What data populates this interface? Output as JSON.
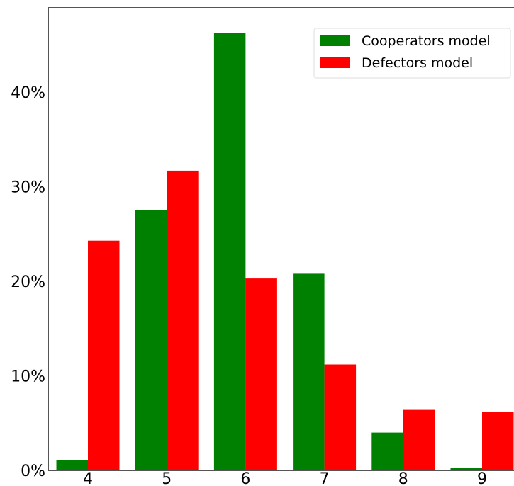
{
  "chart_data": {
    "type": "bar",
    "categories": [
      "4",
      "5",
      "6",
      "7",
      "8",
      "9"
    ],
    "series": [
      {
        "name": "Cooperators model",
        "color": "#008000",
        "values": [
          1.1,
          27.5,
          46.3,
          20.8,
          4.0,
          0.3
        ]
      },
      {
        "name": "Defectors model",
        "color": "#ff0000",
        "values": [
          24.3,
          31.7,
          20.3,
          11.2,
          6.4,
          6.2
        ]
      }
    ],
    "ylim": [
      0,
      49
    ],
    "yticks": [
      0,
      10,
      20,
      30,
      40
    ],
    "ytick_labels": [
      "0%",
      "10%",
      "20%",
      "30%",
      "40%"
    ],
    "xlabel": "",
    "ylabel": "",
    "title": "",
    "legend_position": "top-right",
    "grid": false
  }
}
